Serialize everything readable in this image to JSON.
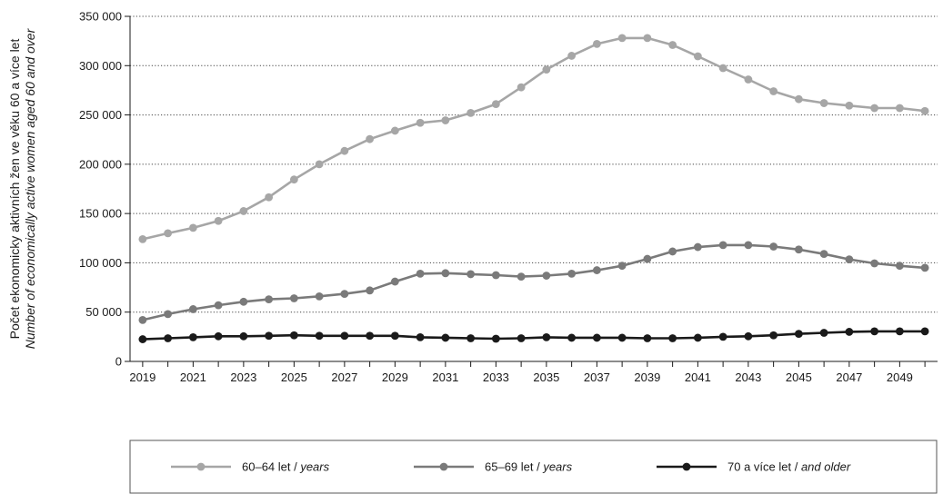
{
  "chart_data": {
    "type": "line",
    "ylabel_cz": "Počet ekonomicky aktivních žen ve věku 60 a více let",
    "ylabel_en": "Number of economically active women aged 60 and over",
    "xlim": [
      2018.5,
      2050.5
    ],
    "ylim": [
      0,
      350000
    ],
    "x_ticks": [
      2019,
      2021,
      2023,
      2025,
      2027,
      2029,
      2031,
      2033,
      2035,
      2037,
      2039,
      2041,
      2043,
      2045,
      2047,
      2049
    ],
    "x_tick_labels": [
      "2019",
      "2021",
      "2023",
      "2025",
      "2027",
      "2029",
      "2031",
      "2033",
      "2035",
      "2037",
      "2039",
      "2041",
      "2043",
      "2045",
      "2047",
      "2049"
    ],
    "y_ticks": [
      0,
      50000,
      100000,
      150000,
      200000,
      250000,
      300000,
      350000
    ],
    "y_tick_labels": [
      "0",
      "50 000",
      "100 000",
      "150 000",
      "200 000",
      "250 000",
      "300 000",
      "350 000"
    ],
    "grid": "horizontal dotted",
    "legend_position": "bottom",
    "x": [
      2019,
      2020,
      2021,
      2022,
      2023,
      2024,
      2025,
      2026,
      2027,
      2028,
      2029,
      2030,
      2031,
      2032,
      2033,
      2034,
      2035,
      2036,
      2037,
      2038,
      2039,
      2040,
      2041,
      2042,
      2043,
      2044,
      2045,
      2046,
      2047,
      2048,
      2049,
      2050
    ],
    "series": [
      {
        "name": "60–64 let / years",
        "name_cz": "60–64 let / ",
        "name_en": "years",
        "color": "#a6a6a6",
        "values": [
          124000,
          130000,
          135500,
          142500,
          152500,
          166500,
          184500,
          200000,
          213500,
          225500,
          234000,
          242000,
          244500,
          252000,
          261000,
          278000,
          296000,
          310000,
          322000,
          328000,
          328000,
          321000,
          309500,
          297500,
          286000,
          274000,
          266000,
          262000,
          259500,
          257000,
          257000,
          254000
        ]
      },
      {
        "name": "65–69 let / years",
        "name_cz": "65–69 let / ",
        "name_en": "years",
        "color": "#7a7a7a",
        "values": [
          42000,
          48000,
          53000,
          57000,
          60500,
          63000,
          64000,
          66000,
          68500,
          72000,
          81000,
          89000,
          89500,
          88500,
          87500,
          86000,
          87000,
          89000,
          92500,
          97000,
          104000,
          111500,
          116000,
          118000,
          118000,
          116500,
          113500,
          109000,
          103500,
          99500,
          97000,
          95000
        ]
      },
      {
        "name": "70 a více let / and older",
        "name_cz": "70 a více let / ",
        "name_en": "and older",
        "color": "#1a1a1a",
        "values": [
          22500,
          23500,
          24500,
          25500,
          25500,
          26000,
          26500,
          26000,
          26000,
          26000,
          26000,
          24500,
          24000,
          23500,
          23000,
          23500,
          24500,
          24000,
          24000,
          24000,
          23500,
          23500,
          24000,
          25000,
          25500,
          26500,
          28000,
          29000,
          30000,
          30500,
          30500,
          30500
        ]
      }
    ]
  }
}
